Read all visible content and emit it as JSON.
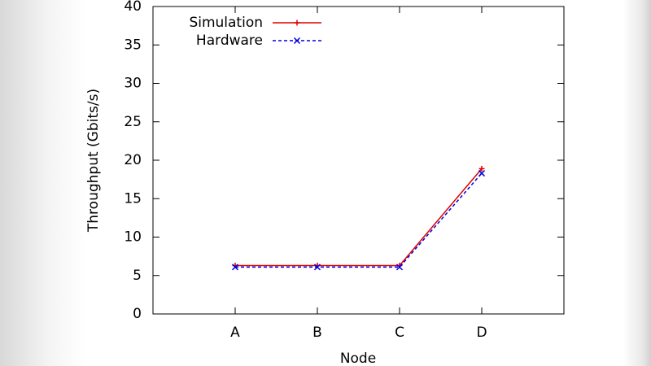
{
  "chart_data": {
    "type": "line",
    "y_label": "Throughput (Gbits/s)",
    "x_label": "Node",
    "categories": [
      "A",
      "B",
      "C",
      "D"
    ],
    "series": [
      {
        "name": "Simulation",
        "color": "#e00000",
        "dash": false,
        "marker": "plus",
        "values": [
          6.3,
          6.3,
          6.3,
          18.9
        ]
      },
      {
        "name": "Hardware",
        "color": "#0000e0",
        "dash": true,
        "marker": "cross",
        "values": [
          6.1,
          6.1,
          6.1,
          18.3
        ]
      }
    ],
    "ylim": [
      0,
      40
    ],
    "yticks": [
      0,
      5,
      10,
      15,
      20,
      25,
      30,
      35,
      40
    ],
    "grid": false,
    "legend": "top-left"
  }
}
